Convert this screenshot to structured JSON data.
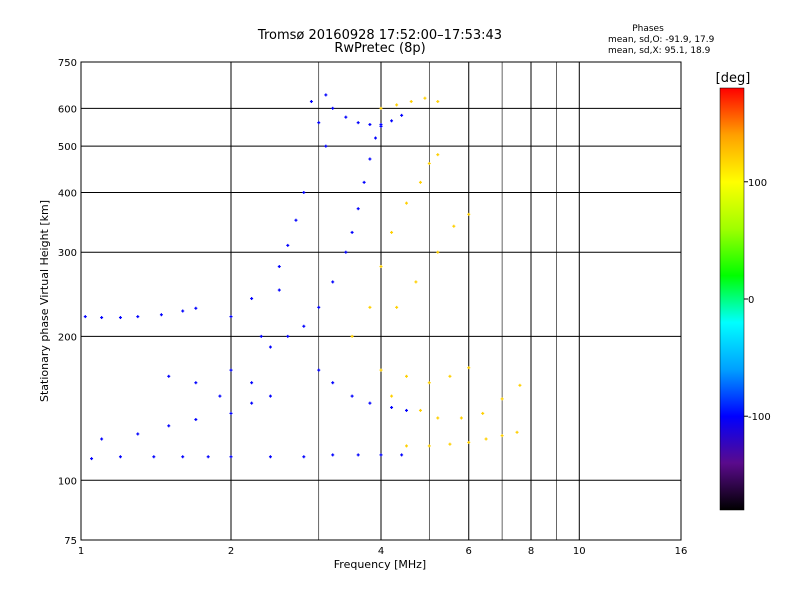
{
  "chart_data": {
    "type": "scatter",
    "title": "Tromsø 20160928 17:52:00–17:53:43",
    "subtitle": "RwPretec (8p)",
    "xlabel": "Frequency [MHz]",
    "ylabel": "Stationary phase Virtual Height [km]",
    "x_scale": "log",
    "y_scale": "log",
    "xlim": [
      1,
      16
    ],
    "ylim": [
      75,
      750
    ],
    "x_ticks": [
      "1",
      "2",
      "4",
      "6",
      "8",
      "10",
      "16"
    ],
    "x_tick_values": [
      1,
      2,
      4,
      6,
      8,
      10,
      16
    ],
    "x_minor_ticks": [
      3,
      5,
      7,
      9
    ],
    "y_ticks": [
      "75",
      "100",
      "200",
      "300",
      "400",
      "500",
      "600",
      "750"
    ],
    "y_tick_values": [
      75,
      100,
      200,
      300,
      400,
      500,
      600,
      750
    ],
    "grid": true,
    "legend": {
      "title": "Phases",
      "lines": [
        "mean, sd,O: -91.9, 17.9",
        "mean, sd,X:  95.1, 18.9"
      ]
    },
    "colorbar": {
      "label": "[deg]",
      "range": [
        -180,
        180
      ],
      "ticks": [
        "100",
        "0",
        "-100"
      ],
      "tick_values": [
        100,
        0,
        -100
      ],
      "colors": [
        "#000000",
        "#5a0a8c",
        "#0000ff",
        "#00a0ff",
        "#00ffff",
        "#00ff00",
        "#a0ff00",
        "#ffff00",
        "#ffa000",
        "#ff0000"
      ]
    },
    "series": [
      {
        "phase_deg": -100,
        "points": [
          [
            1.05,
            111
          ],
          [
            1.2,
            112
          ],
          [
            1.4,
            112
          ],
          [
            1.6,
            112
          ],
          [
            1.8,
            112
          ],
          [
            2.0,
            112
          ],
          [
            2.4,
            112
          ],
          [
            2.8,
            112
          ],
          [
            3.2,
            113
          ],
          [
            3.6,
            113
          ],
          [
            4.0,
            113
          ],
          [
            4.4,
            113
          ],
          [
            1.02,
            220
          ],
          [
            1.1,
            219
          ],
          [
            1.2,
            219
          ],
          [
            1.3,
            220
          ],
          [
            1.45,
            222
          ],
          [
            1.6,
            226
          ],
          [
            1.7,
            229
          ],
          [
            1.1,
            122
          ],
          [
            1.3,
            125
          ],
          [
            1.5,
            130
          ],
          [
            1.7,
            134
          ],
          [
            2.0,
            138
          ],
          [
            2.4,
            150
          ],
          [
            1.5,
            165
          ],
          [
            1.7,
            160
          ],
          [
            1.9,
            150
          ],
          [
            2.2,
            145
          ],
          [
            2.4,
            190
          ],
          [
            2.6,
            200
          ],
          [
            2.8,
            210
          ],
          [
            3.0,
            230
          ],
          [
            3.2,
            260
          ],
          [
            3.4,
            300
          ],
          [
            3.5,
            330
          ],
          [
            3.6,
            370
          ],
          [
            3.7,
            420
          ],
          [
            3.8,
            470
          ],
          [
            3.9,
            520
          ],
          [
            4.0,
            550
          ],
          [
            2.5,
            250
          ],
          [
            2.5,
            280
          ],
          [
            2.6,
            310
          ],
          [
            2.7,
            350
          ],
          [
            2.8,
            400
          ],
          [
            3.1,
            640
          ],
          [
            3.2,
            600
          ],
          [
            3.4,
            575
          ],
          [
            3.6,
            560
          ],
          [
            3.8,
            555
          ],
          [
            4.0,
            555
          ],
          [
            4.2,
            565
          ],
          [
            4.4,
            580
          ],
          [
            3.0,
            170
          ],
          [
            3.2,
            160
          ],
          [
            3.5,
            150
          ],
          [
            3.8,
            145
          ],
          [
            4.2,
            142
          ],
          [
            4.5,
            140
          ],
          [
            2.9,
            620
          ],
          [
            3.0,
            560
          ],
          [
            3.1,
            500
          ],
          [
            2.2,
            240
          ],
          [
            2.0,
            220
          ],
          [
            2.3,
            200
          ],
          [
            2.0,
            170
          ],
          [
            2.2,
            160
          ]
        ]
      },
      {
        "phase_deg": 120,
        "points": [
          [
            4.5,
            118
          ],
          [
            5.0,
            118
          ],
          [
            5.5,
            119
          ],
          [
            6.0,
            120
          ],
          [
            6.5,
            122
          ],
          [
            7.0,
            124
          ],
          [
            7.5,
            126
          ],
          [
            3.5,
            200
          ],
          [
            3.8,
            230
          ],
          [
            4.0,
            280
          ],
          [
            4.2,
            330
          ],
          [
            4.5,
            380
          ],
          [
            4.8,
            420
          ],
          [
            5.0,
            460
          ],
          [
            5.2,
            480
          ],
          [
            4.0,
            600
          ],
          [
            4.3,
            610
          ],
          [
            4.6,
            620
          ],
          [
            4.9,
            630
          ],
          [
            5.2,
            620
          ],
          [
            4.2,
            150
          ],
          [
            4.8,
            140
          ],
          [
            5.2,
            135
          ],
          [
            5.8,
            135
          ],
          [
            6.4,
            138
          ],
          [
            7.0,
            148
          ],
          [
            7.6,
            158
          ],
          [
            4.0,
            170
          ],
          [
            4.5,
            165
          ],
          [
            5.0,
            160
          ],
          [
            5.5,
            165
          ],
          [
            6.0,
            172
          ],
          [
            4.3,
            230
          ],
          [
            4.7,
            260
          ],
          [
            5.2,
            300
          ],
          [
            5.6,
            340
          ],
          [
            6.0,
            360
          ]
        ]
      }
    ]
  }
}
